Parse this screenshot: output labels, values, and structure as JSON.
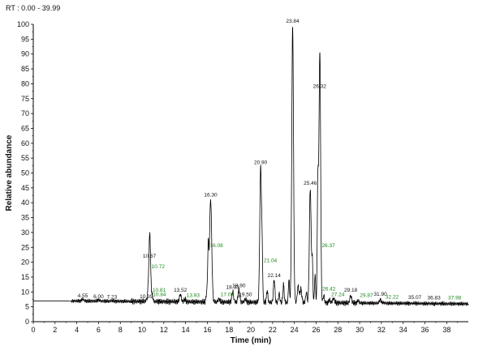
{
  "chart_data": {
    "type": "line",
    "rt_range_label": "RT : 0.00 - 39.99",
    "xlabel": "Time (min)",
    "ylabel": "Relative abundance",
    "xlim": [
      0,
      39.99
    ],
    "ylim": [
      0,
      100
    ],
    "x_ticks": [
      0,
      2,
      4,
      6,
      8,
      10,
      12,
      14,
      16,
      18,
      20,
      22,
      24,
      26,
      28,
      30,
      32,
      34,
      36,
      38
    ],
    "y_ticks": [
      0,
      5,
      10,
      15,
      20,
      25,
      30,
      35,
      40,
      45,
      50,
      55,
      60,
      65,
      70,
      75,
      80,
      85,
      90,
      95,
      100
    ],
    "grid": false,
    "baseline": 7,
    "trace_color": "#000000",
    "label_color_green": "#1a8a1a",
    "peaks": [
      {
        "label": "4.55",
        "x": 4.55,
        "y": 7.6,
        "w": 0.1,
        "color": "black"
      },
      {
        "label": "6.00",
        "x": 6.0,
        "y": 7.4,
        "w": 0.1,
        "color": "black"
      },
      {
        "label": "7.23",
        "x": 7.23,
        "y": 7.2,
        "w": 0.1,
        "color": "black"
      },
      {
        "label": "10.39",
        "x": 10.39,
        "y": 7.4,
        "w": 0.1,
        "color": "black"
      },
      {
        "label": "10.67",
        "x": 10.67,
        "y": 21,
        "w": 0.09,
        "color": "black"
      },
      {
        "label": "10.72",
        "x": 10.72,
        "y": 17.5,
        "w": 0.05,
        "color": "green"
      },
      {
        "label": "10.81",
        "x": 10.81,
        "y": 9.5,
        "w": 0.05,
        "color": "green"
      },
      {
        "label": "10.84",
        "x": 10.84,
        "y": 8.0,
        "w": 0.05,
        "color": "green"
      },
      {
        "label": "13.52",
        "x": 13.52,
        "y": 9.5,
        "w": 0.08,
        "color": "black"
      },
      {
        "label": "13.93",
        "x": 13.93,
        "y": 7.8,
        "w": 0.08,
        "color": "green"
      },
      {
        "label": "16.08",
        "x": 16.08,
        "y": 24.5,
        "w": 0.05,
        "color": "green"
      },
      {
        "label": "16.30",
        "x": 16.3,
        "y": 41.5,
        "w": 0.1,
        "color": "black"
      },
      {
        "label": "17.07",
        "x": 17.07,
        "y": 8.0,
        "w": 0.08,
        "color": "green"
      },
      {
        "label": "18.33",
        "x": 18.33,
        "y": 10.5,
        "w": 0.08,
        "color": "black"
      },
      {
        "label": "18.90",
        "x": 18.9,
        "y": 11.0,
        "w": 0.08,
        "color": "black"
      },
      {
        "label": "19.50",
        "x": 19.5,
        "y": 8.0,
        "w": 0.08,
        "color": "black"
      },
      {
        "label": "20.90",
        "x": 20.9,
        "y": 52.5,
        "w": 0.08,
        "color": "black"
      },
      {
        "label": "21.04",
        "x": 21.04,
        "y": 19.5,
        "w": 0.05,
        "color": "green"
      },
      {
        "label": "22.14",
        "x": 22.14,
        "y": 14.5,
        "w": 0.07,
        "color": "black"
      },
      {
        "label": "23.84",
        "x": 23.84,
        "y": 100,
        "w": 0.08,
        "color": "black"
      },
      {
        "label": "25.46",
        "x": 25.46,
        "y": 45.5,
        "w": 0.08,
        "color": "black"
      },
      {
        "label": "26.32",
        "x": 26.32,
        "y": 78,
        "w": 0.08,
        "color": "black"
      },
      {
        "label": "26.37",
        "x": 26.37,
        "y": 24.5,
        "w": 0.05,
        "color": "green"
      },
      {
        "label": "26.42",
        "x": 26.42,
        "y": 10.0,
        "w": 0.05,
        "color": "green"
      },
      {
        "label": "27.24",
        "x": 27.24,
        "y": 8.0,
        "w": 0.07,
        "color": "green"
      },
      {
        "label": "29.18",
        "x": 29.18,
        "y": 9.5,
        "w": 0.08,
        "color": "black"
      },
      {
        "label": "29.87",
        "x": 29.87,
        "y": 7.8,
        "w": 0.08,
        "color": "green"
      },
      {
        "label": "31.90",
        "x": 31.9,
        "y": 8.2,
        "w": 0.08,
        "color": "black"
      },
      {
        "label": "32.22",
        "x": 32.22,
        "y": 7.2,
        "w": 0.08,
        "color": "green"
      },
      {
        "label": "35.07",
        "x": 35.07,
        "y": 7.1,
        "w": 0.08,
        "color": "black"
      },
      {
        "label": "36.83",
        "x": 36.83,
        "y": 6.9,
        "w": 0.08,
        "color": "black"
      },
      {
        "label": "37.98",
        "x": 37.98,
        "y": 6.9,
        "w": 0.08,
        "color": "green"
      }
    ],
    "unlabeled_peaks": [
      {
        "x": 10.95,
        "y": 9.0,
        "w": 0.05
      },
      {
        "x": 15.95,
        "y": 10.5,
        "w": 0.06
      },
      {
        "x": 21.5,
        "y": 11.0,
        "w": 0.06
      },
      {
        "x": 22.6,
        "y": 10.0,
        "w": 0.06
      },
      {
        "x": 23.0,
        "y": 13.0,
        "w": 0.06
      },
      {
        "x": 23.5,
        "y": 15.0,
        "w": 0.05
      },
      {
        "x": 24.35,
        "y": 12.5,
        "w": 0.08
      },
      {
        "x": 24.6,
        "y": 11.5,
        "w": 0.08
      },
      {
        "x": 25.1,
        "y": 10.5,
        "w": 0.06
      },
      {
        "x": 25.65,
        "y": 20.5,
        "w": 0.05
      },
      {
        "x": 25.9,
        "y": 16.5,
        "w": 0.05
      },
      {
        "x": 26.15,
        "y": 43.5,
        "w": 0.05
      },
      {
        "x": 26.7,
        "y": 9.5,
        "w": 0.06
      },
      {
        "x": 27.6,
        "y": 8.5,
        "w": 0.08
      }
    ]
  }
}
